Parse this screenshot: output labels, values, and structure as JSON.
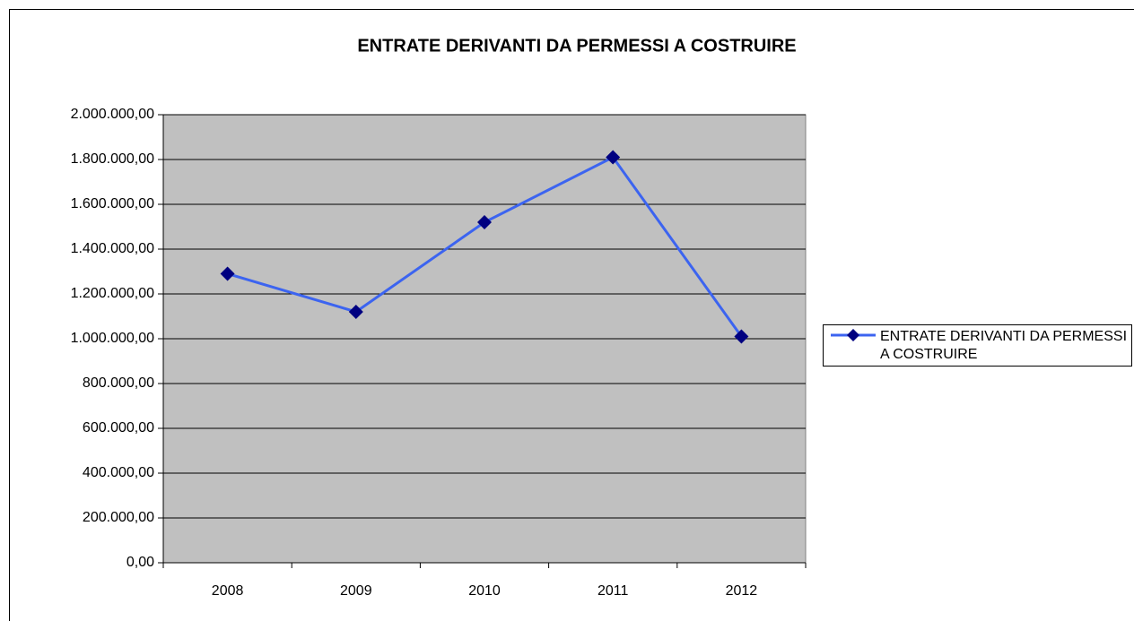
{
  "chart_data": {
    "type": "line",
    "title": "ENTRATE DERIVANTI DA PERMESSI A COSTRUIRE",
    "categories": [
      "2008",
      "2009",
      "2010",
      "2011",
      "2012"
    ],
    "series": [
      {
        "name": "ENTRATE DERIVANTI DA PERMESSI A COSTRUIRE",
        "color": "#3c64f0",
        "marker_color": "#000080",
        "values": [
          1290000,
          1120000,
          1520000,
          1810000,
          1010000
        ]
      }
    ],
    "ylim": [
      0,
      2000000
    ],
    "yticks": [
      {
        "value": 0,
        "label": "0,00"
      },
      {
        "value": 200000,
        "label": "200.000,00"
      },
      {
        "value": 400000,
        "label": "400.000,00"
      },
      {
        "value": 600000,
        "label": "600.000,00"
      },
      {
        "value": 800000,
        "label": "800.000,00"
      },
      {
        "value": 1000000,
        "label": "1.000.000,00"
      },
      {
        "value": 1200000,
        "label": "1.200.000,00"
      },
      {
        "value": 1400000,
        "label": "1.400.000,00"
      },
      {
        "value": 1600000,
        "label": "1.600.000,00"
      },
      {
        "value": 1800000,
        "label": "1.800.000,00"
      },
      {
        "value": 2000000,
        "label": "2.000.000,00"
      }
    ],
    "grid": true,
    "plot_background": "#c0c0c0",
    "legend": "right"
  }
}
